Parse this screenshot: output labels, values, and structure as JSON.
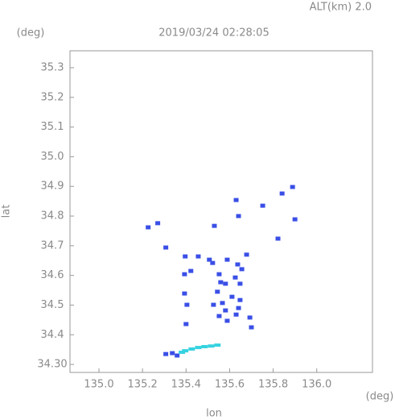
{
  "chart_data": {
    "type": "scatter",
    "title": "2019/03/24 02:28:05",
    "subtitle": "ALT(km) 2.0",
    "x_label": "lon",
    "x_unit": "(deg)",
    "y_label": "lat",
    "y_unit": "(deg)",
    "xlim": [
      134.867,
      136.256
    ],
    "ylim": [
      34.273,
      35.357
    ],
    "xticks": [
      {
        "value": 135.0,
        "label": "135.0"
      },
      135.2,
      135.4,
      135.6,
      135.8,
      {
        "value": 136.0,
        "label": "136.0"
      }
    ],
    "yticks": [
      {
        "value": 34.3,
        "label": "34.30"
      },
      34.4,
      34.5,
      34.6,
      34.7,
      34.8,
      34.9,
      {
        "value": 35.0,
        "label": "35.0"
      },
      35.1,
      35.2,
      35.3
    ],
    "series": [
      {
        "color": "#3a4fe6",
        "x": [
          135.226,
          135.27,
          135.307,
          135.53,
          135.63,
          135.641,
          135.752,
          135.841,
          135.889,
          135.9,
          135.822,
          135.396,
          135.456,
          135.507,
          135.522,
          135.589,
          135.637,
          135.678,
          135.656,
          135.422,
          135.552,
          135.581,
          135.648,
          135.393,
          135.404,
          135.544,
          135.567,
          135.611,
          135.648,
          135.526,
          135.581,
          135.641,
          135.552,
          135.589,
          135.63,
          135.693,
          135.7,
          135.393,
          135.559,
          135.626,
          135.4,
          135.337,
          135.359,
          135.307
        ],
        "y": [
          34.762,
          34.776,
          34.694,
          34.767,
          34.854,
          34.8,
          34.835,
          34.876,
          34.898,
          34.789,
          34.724,
          34.664,
          34.664,
          34.653,
          34.642,
          34.653,
          34.637,
          34.67,
          34.621,
          34.615,
          34.604,
          34.572,
          34.572,
          34.539,
          34.501,
          34.545,
          34.507,
          34.528,
          34.517,
          34.501,
          34.482,
          34.49,
          34.463,
          34.447,
          34.468,
          34.458,
          34.425,
          34.604,
          34.577,
          34.593,
          34.436,
          34.338,
          34.33,
          34.335
        ]
      },
      {
        "color": "#36d2e0",
        "x": [
          135.396,
          135.426,
          135.456,
          135.485,
          135.515,
          135.544,
          135.381
        ],
        "y": [
          34.346,
          34.352,
          34.357,
          34.36,
          34.362,
          34.365,
          34.341
        ]
      }
    ]
  }
}
